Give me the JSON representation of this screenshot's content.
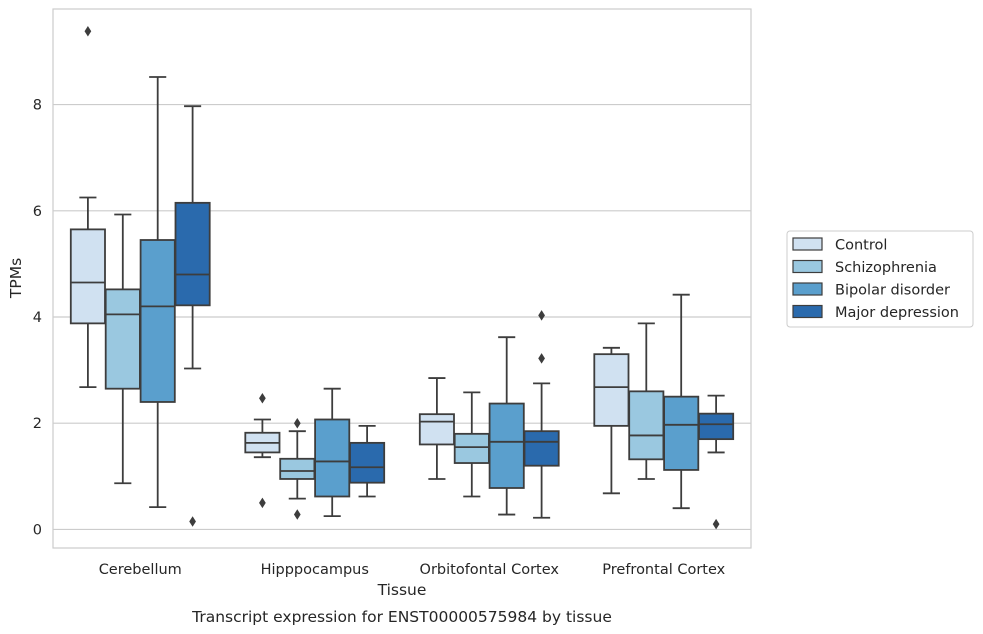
{
  "chart_data": {
    "type": "box",
    "xlabel": "Tissue",
    "ylabel": "TPMs",
    "caption": "Transcript expression for ENST00000575984 by tissue",
    "ylim": [
      -0.35,
      9.8
    ],
    "yticks": [
      "0",
      "2",
      "4",
      "6",
      "8"
    ],
    "grid": "horizontal",
    "legend_position": "right",
    "categories": [
      "Cerebellum",
      "Hipppocampus",
      "Orbitofontal Cortex",
      "Prefrontal Cortex"
    ],
    "series": [
      {
        "name": "Control",
        "color": "#d0e1f1",
        "boxes": [
          {
            "whislo": 2.68,
            "q1": 3.88,
            "med": 4.65,
            "q3": 5.65,
            "whishi": 6.25,
            "fliers": [
              9.38
            ]
          },
          {
            "whislo": 1.36,
            "q1": 1.45,
            "med": 1.63,
            "q3": 1.82,
            "whishi": 2.07,
            "fliers": [
              2.47,
              0.5
            ]
          },
          {
            "whislo": 0.95,
            "q1": 1.6,
            "med": 2.03,
            "q3": 2.17,
            "whishi": 2.85,
            "fliers": []
          },
          {
            "whislo": 0.68,
            "q1": 1.95,
            "med": 2.68,
            "q3": 3.3,
            "whishi": 3.42,
            "fliers": []
          }
        ]
      },
      {
        "name": "Schizophrenia",
        "color": "#9ac8e0",
        "boxes": [
          {
            "whislo": 0.87,
            "q1": 2.65,
            "med": 4.05,
            "q3": 4.52,
            "whishi": 5.93,
            "fliers": []
          },
          {
            "whislo": 0.58,
            "q1": 0.95,
            "med": 1.1,
            "q3": 1.33,
            "whishi": 1.85,
            "fliers": [
              2.0,
              0.28
            ]
          },
          {
            "whislo": 0.62,
            "q1": 1.25,
            "med": 1.55,
            "q3": 1.8,
            "whishi": 2.58,
            "fliers": []
          },
          {
            "whislo": 0.95,
            "q1": 1.32,
            "med": 1.77,
            "q3": 2.6,
            "whishi": 3.88,
            "fliers": []
          }
        ]
      },
      {
        "name": "Bipolar disorder",
        "color": "#5a9fcd",
        "boxes": [
          {
            "whislo": 0.42,
            "q1": 2.4,
            "med": 4.2,
            "q3": 5.45,
            "whishi": 8.52,
            "fliers": []
          },
          {
            "whislo": 0.25,
            "q1": 0.62,
            "med": 1.28,
            "q3": 2.07,
            "whishi": 2.65,
            "fliers": []
          },
          {
            "whislo": 0.28,
            "q1": 0.78,
            "med": 1.65,
            "q3": 2.37,
            "whishi": 3.62,
            "fliers": []
          },
          {
            "whislo": 0.4,
            "q1": 1.12,
            "med": 1.97,
            "q3": 2.5,
            "whishi": 4.42,
            "fliers": []
          }
        ]
      },
      {
        "name": "Major depression",
        "color": "#2a6aad",
        "boxes": [
          {
            "whislo": 3.03,
            "q1": 4.22,
            "med": 4.8,
            "q3": 6.15,
            "whishi": 7.97,
            "fliers": [
              0.15
            ]
          },
          {
            "whislo": 0.62,
            "q1": 0.88,
            "med": 1.17,
            "q3": 1.63,
            "whishi": 1.95,
            "fliers": []
          },
          {
            "whislo": 0.22,
            "q1": 1.2,
            "med": 1.65,
            "q3": 1.85,
            "whishi": 2.75,
            "fliers": [
              4.03,
              3.22
            ]
          },
          {
            "whislo": 1.45,
            "q1": 1.7,
            "med": 1.98,
            "q3": 2.18,
            "whishi": 2.52,
            "fliers": [
              0.1
            ]
          }
        ]
      }
    ]
  }
}
